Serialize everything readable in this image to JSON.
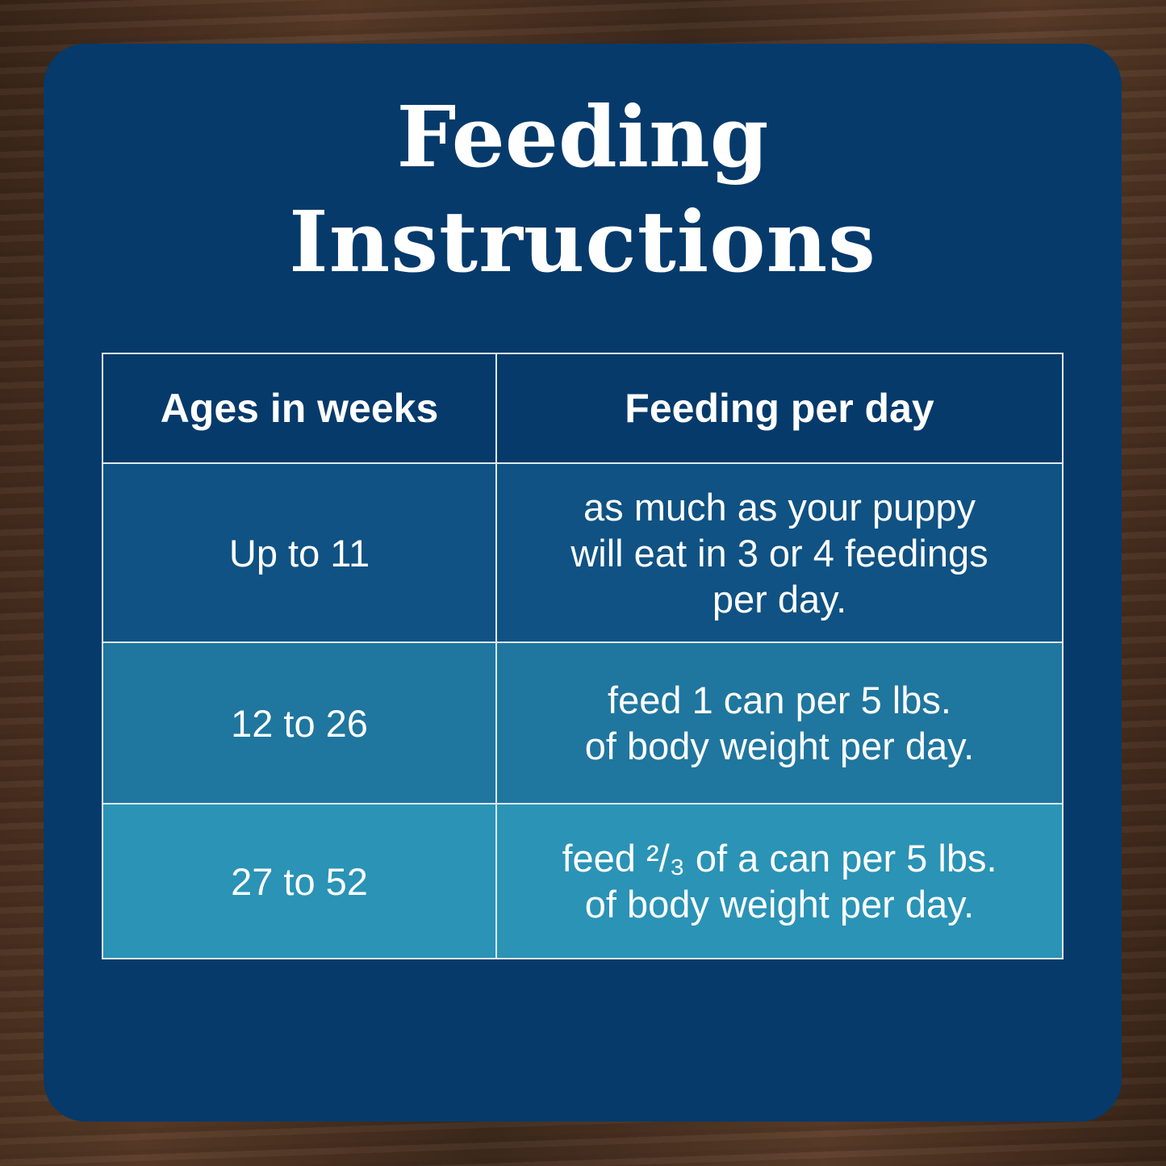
{
  "colors": {
    "card": "#053a6b",
    "row1": "#0f5283",
    "row2": "#1f769f",
    "row3": "#2a93b6",
    "text": "#ffffff"
  },
  "title": {
    "line1": "Feeding",
    "line2": "Instructions"
  },
  "table": {
    "headers": [
      "Ages in weeks",
      "Feeding per day"
    ],
    "rows": [
      {
        "age": "Up to 11",
        "feeding": [
          "as much as your puppy",
          "will eat in 3 or 4 feedings",
          "per day."
        ]
      },
      {
        "age": "12 to 26",
        "feeding": [
          "feed 1 can per 5 lbs.",
          "of body weight per day."
        ]
      },
      {
        "age": "27 to 52",
        "feeding": [
          "feed ²/₃ of a can per 5 lbs.",
          "of body weight per day."
        ]
      }
    ]
  }
}
